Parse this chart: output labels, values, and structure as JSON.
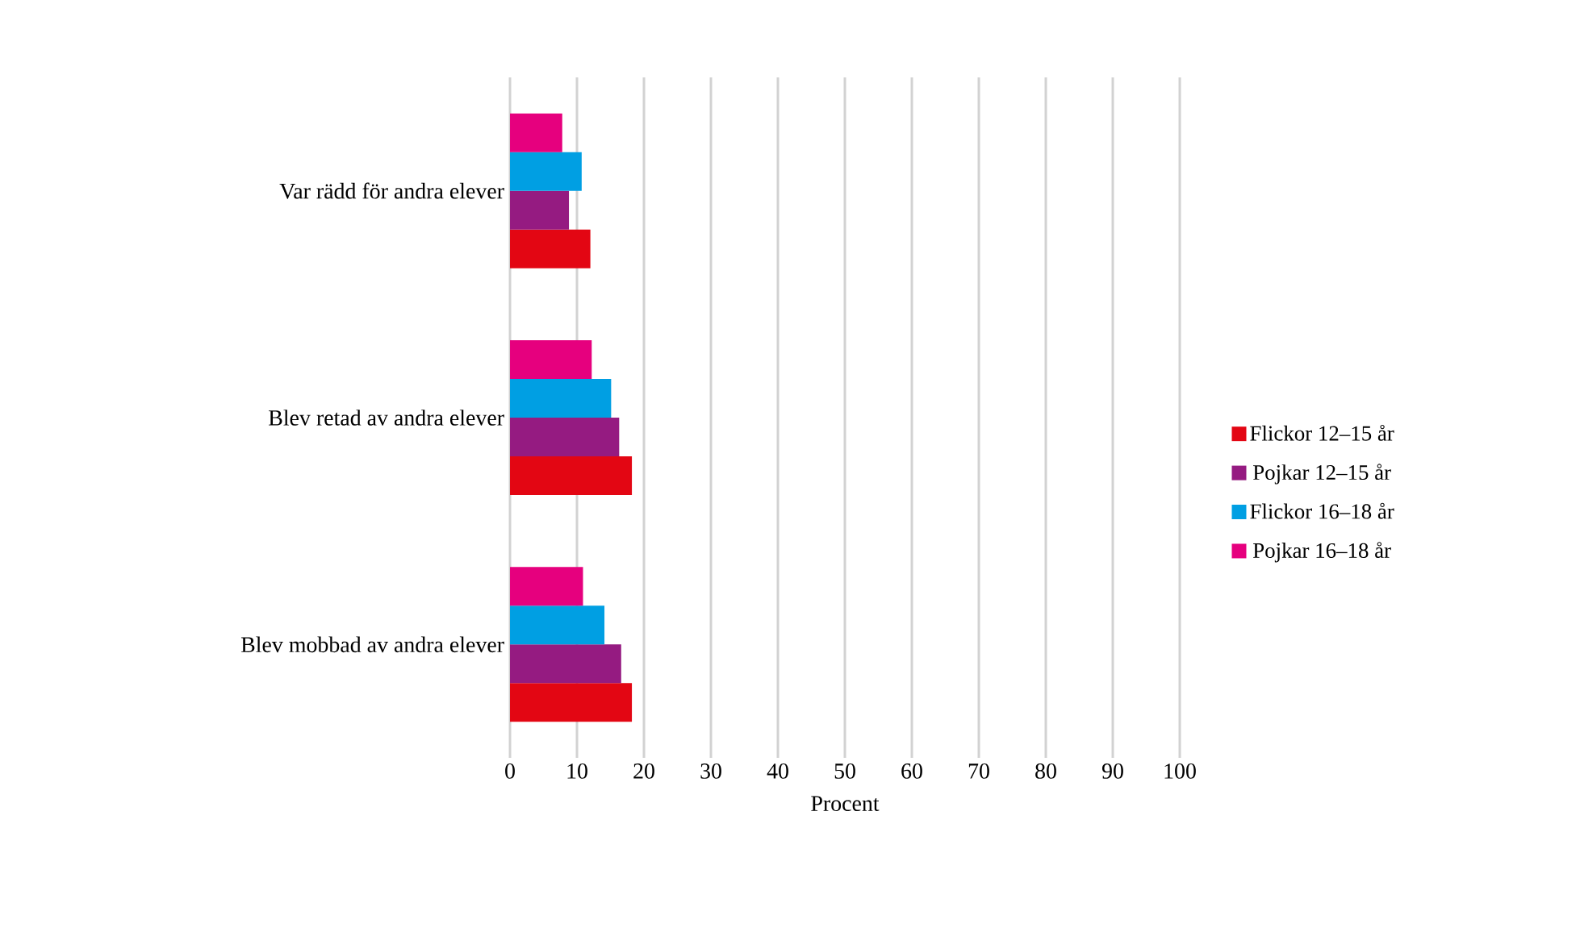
{
  "chart_data": {
    "type": "bar",
    "orientation": "horizontal",
    "categories": [
      "Var rädd för andra elever",
      "Blev retad av andra elever",
      "Blev mobbad av andra elever"
    ],
    "series": [
      {
        "name": "Flickor 12–15 år",
        "color": "#e30613",
        "values": [
          12,
          18.2,
          18.2
        ]
      },
      {
        "name": "Pojkar 12–15 år",
        "color": "#951b81",
        "values": [
          8.8,
          16.3,
          16.6
        ]
      },
      {
        "name": "Flickor 16–18 år",
        "color": "#009fe3",
        "values": [
          10.7,
          15.1,
          14.1
        ]
      },
      {
        "name": "Pojkar 16–18 år",
        "color": "#e6007e",
        "values": [
          7.8,
          12.2,
          10.9
        ]
      }
    ],
    "xlabel": "Procent",
    "xlim": [
      0,
      100
    ],
    "xticks": [
      0,
      10,
      20,
      30,
      40,
      50,
      60,
      70,
      80,
      90,
      100
    ],
    "grid": "x",
    "legend": "right"
  }
}
